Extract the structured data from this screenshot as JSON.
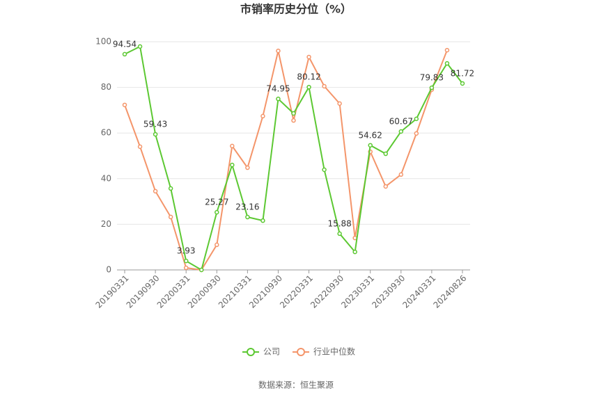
{
  "chart_data": {
    "type": "line",
    "title": "市销率历史分位（%）",
    "categories": [
      "20190331",
      null,
      "20190930",
      null,
      "20200331",
      null,
      "20200930",
      null,
      "20210331",
      null,
      "20210930",
      null,
      "20220331",
      null,
      "20220930",
      null,
      "20230331",
      null,
      "20230930",
      null,
      "20240331",
      null,
      "20240826"
    ],
    "series": [
      {
        "name": "公司",
        "color": "#5cc832",
        "values": [
          94.54,
          97.9,
          59.43,
          35.7,
          3.93,
          0,
          25.27,
          46,
          23.16,
          21.6,
          74.95,
          68.6,
          80.12,
          43.9,
          15.88,
          7.9,
          54.62,
          50.9,
          60.67,
          66.2,
          79.83,
          90.5,
          81.72
        ]
      },
      {
        "name": "行业中位数",
        "color": "#f4956a",
        "values": [
          72.3,
          54,
          34.5,
          23.2,
          0.9,
          0,
          11,
          54.3,
          44.8,
          67.4,
          96,
          65.5,
          93.3,
          80.5,
          72.9,
          14,
          51.8,
          36.6,
          41.8,
          59.8,
          79,
          96.3,
          null
        ]
      }
    ],
    "ylim": [
      0,
      100
    ],
    "yticks": [
      0,
      20,
      40,
      60,
      80,
      100
    ],
    "grid": true,
    "source": "数据来源：恒生聚源"
  }
}
